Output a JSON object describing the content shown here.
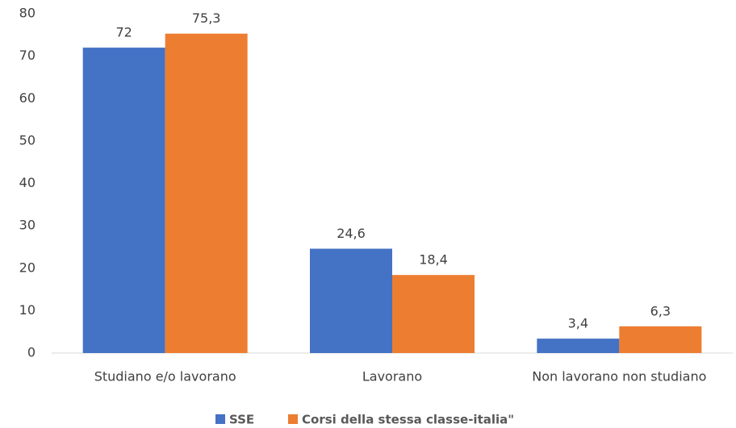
{
  "chart_data": {
    "type": "bar",
    "categories": [
      "Studiano e/o lavorano",
      "Lavorano",
      "Non lavorano non studiano"
    ],
    "series": [
      {
        "name": "SSE",
        "color": "#4472c4",
        "values": [
          72,
          24.6,
          3.4
        ],
        "value_labels": [
          "72",
          "24,6",
          "3,4"
        ]
      },
      {
        "name": "Corsi della stessa classe-italia\"",
        "color": "#ed7d31",
        "values": [
          75.3,
          18.4,
          6.3
        ],
        "value_labels": [
          "75,3",
          "18,4",
          "6,3"
        ]
      }
    ],
    "ylim": [
      0,
      80
    ],
    "yticks": [
      0,
      10,
      20,
      30,
      40,
      50,
      60,
      70,
      80
    ],
    "grid": false,
    "legend": "bottom"
  }
}
